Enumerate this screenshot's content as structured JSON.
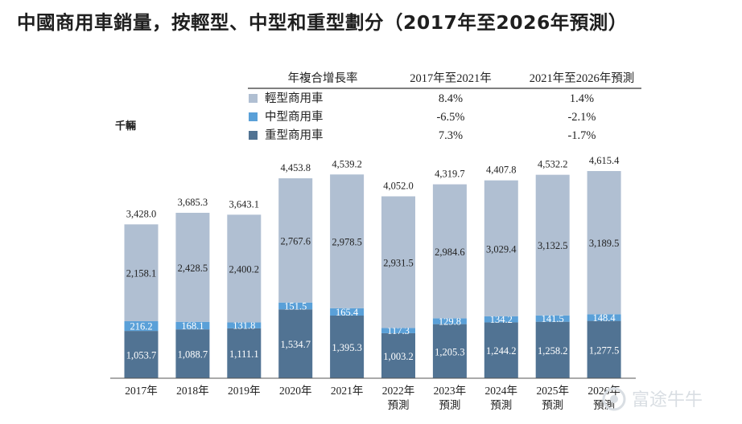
{
  "title": "中國商用車銷量，按輕型、中型和重型劃分（2017年至2026年預測）",
  "unit_label": "千輛",
  "growth_table": {
    "header": [
      "年複合增長率",
      "2017年至2021年",
      "2021年至2026年預測"
    ],
    "rows": [
      {
        "label": "輕型商用車",
        "cagr_2017_2021": "8.4%",
        "cagr_2021_2026": "1.4%"
      },
      {
        "label": "中型商用車",
        "cagr_2017_2021": "-6.5%",
        "cagr_2021_2026": "-2.1%"
      },
      {
        "label": "重型商用車",
        "cagr_2017_2021": "7.3%",
        "cagr_2021_2026": "-1.7%"
      }
    ]
  },
  "colors": {
    "light": "#b0bfd2",
    "medium": "#5aa0d8",
    "heavy": "#517393"
  },
  "watermark": "富途牛牛",
  "watermark_icon": "futu-logo-icon",
  "chart_data": {
    "type": "bar",
    "stacked": true,
    "categories": [
      "2017年",
      "2018年",
      "2019年",
      "2020年",
      "2021年",
      "2022年\n預測",
      "2023年\n預測",
      "2024年\n預測",
      "2025年\n預測",
      "2026年\n預測"
    ],
    "series": [
      {
        "name": "重型商用車",
        "values": [
          1053.7,
          1088.7,
          1111.1,
          1534.7,
          1395.3,
          1003.2,
          1205.3,
          1244.2,
          1258.2,
          1277.5
        ]
      },
      {
        "name": "中型商用車",
        "values": [
          216.2,
          168.1,
          131.8,
          151.5,
          165.4,
          117.3,
          129.8,
          134.2,
          141.5,
          148.4
        ]
      },
      {
        "name": "輕型商用車",
        "values": [
          2158.1,
          2428.5,
          2400.2,
          2767.6,
          2978.5,
          2931.5,
          2984.6,
          3029.4,
          3132.5,
          3189.5
        ]
      }
    ],
    "series_labels": {
      "heavy": [
        "1,053.7",
        "1,088.7",
        "1,111.1",
        "1,534.7",
        "1,395.3",
        "1,003.2",
        "1,205.3",
        "1,244.2",
        "1,258.2",
        "1,277.5"
      ],
      "medium": [
        "216.2",
        "168.1",
        "131.8",
        "151.5",
        "165.4",
        "117.3",
        "129.8",
        "134.2",
        "141.5",
        "148.4"
      ],
      "light": [
        "2,158.1",
        "2,428.5",
        "2,400.2",
        "2,767.6",
        "2,978.5",
        "2,931.5",
        "2,984.6",
        "3,029.4",
        "3,132.5",
        "3,189.5"
      ]
    },
    "totals": [
      3428.0,
      3685.3,
      3643.1,
      4453.8,
      4539.2,
      4052.0,
      4319.7,
      4407.8,
      4532.2,
      4615.4
    ],
    "total_labels": [
      "3,428.0",
      "3,685.3",
      "3,643.1",
      "4,453.8",
      "4,539.2",
      "4,052.0",
      "4,319.7",
      "4,407.8",
      "4,532.2",
      "4,615.4"
    ],
    "ylabel": "千輛",
    "ylim": [
      0,
      4800
    ],
    "grid": false,
    "legend": "top-right table"
  }
}
